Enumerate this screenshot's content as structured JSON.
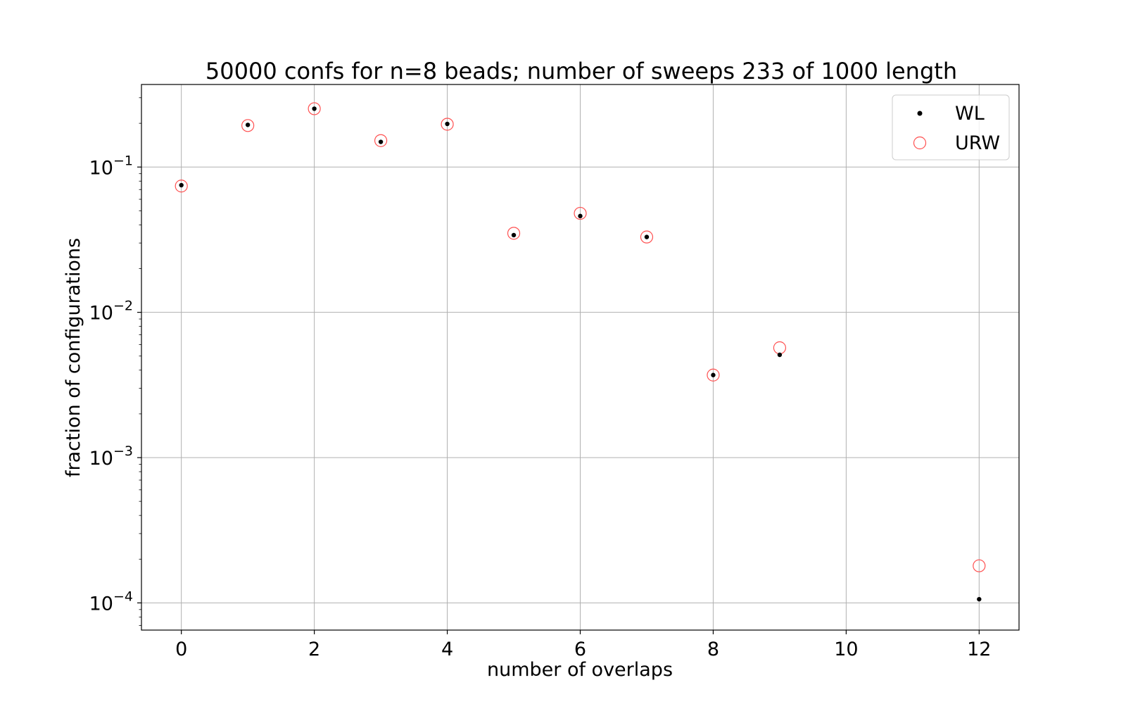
{
  "chart_data": {
    "type": "scatter",
    "title": "50000 confs for n=8 beads; number of sweeps 233 of 1000 length",
    "xlabel": "number of overlaps",
    "ylabel": "fraction of configurations",
    "xlim": [
      -0.6,
      12.6
    ],
    "ylim": [
      6.5e-05,
      0.37
    ],
    "yscale": "log",
    "grid": true,
    "legend_position": "top-right",
    "x_ticks": [
      0,
      2,
      4,
      6,
      8,
      10,
      12
    ],
    "y_ticks": [
      {
        "value": 0.0001,
        "base": "10",
        "exp": "−4"
      },
      {
        "value": 0.001,
        "base": "10",
        "exp": "−3"
      },
      {
        "value": 0.01,
        "base": "10",
        "exp": "−2"
      },
      {
        "value": 0.1,
        "base": "10",
        "exp": "−1"
      }
    ],
    "series": [
      {
        "name": "WL",
        "marker": "dot",
        "color": "#000000",
        "x": [
          0,
          1,
          2,
          3,
          4,
          5,
          6,
          7,
          8,
          9,
          12
        ],
        "y": [
          0.075,
          0.195,
          0.252,
          0.149,
          0.198,
          0.034,
          0.046,
          0.033,
          0.0037,
          0.0051,
          0.000106
        ]
      },
      {
        "name": "URW",
        "marker": "open-circle",
        "color": "#ff5050",
        "x": [
          0,
          1,
          2,
          3,
          4,
          5,
          6,
          7,
          8,
          9,
          12
        ],
        "y": [
          0.074,
          0.193,
          0.252,
          0.152,
          0.197,
          0.035,
          0.048,
          0.033,
          0.0037,
          0.0057,
          0.00018
        ]
      }
    ]
  }
}
